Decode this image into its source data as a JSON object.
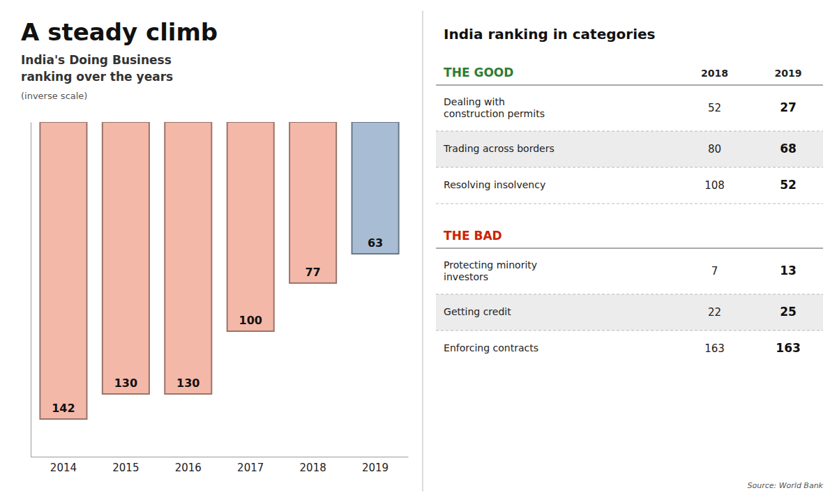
{
  "chart_data": {
    "type": "bar",
    "title": "A steady climb",
    "subtitle": [
      "India's Doing Business",
      "ranking over the years"
    ],
    "note": "(inverse scale)",
    "categories": [
      "2014",
      "2015",
      "2016",
      "2017",
      "2018",
      "2019"
    ],
    "values": [
      142,
      130,
      130,
      100,
      77,
      63
    ],
    "colors": [
      "#F4B8A8",
      "#F4B8A8",
      "#F4B8A8",
      "#F4B8A8",
      "#F4B8A8",
      "#A8BDD4"
    ],
    "ylim": [
      0,
      160
    ],
    "tick_labels": "x",
    "data_labels": true,
    "table": {
      "title": "India ranking in categories",
      "columns": [
        "2018",
        "2019"
      ],
      "sections": [
        {
          "label": "THE GOOD",
          "color": "#2E7D32",
          "rows": [
            {
              "label": "Dealing with\nconstruction permits",
              "values": [
                52,
                27
              ]
            },
            {
              "label": "Trading across borders",
              "values": [
                80,
                68
              ]
            },
            {
              "label": "Resolving insolvency",
              "values": [
                108,
                52
              ]
            }
          ]
        },
        {
          "label": "THE BAD",
          "color": "#CC2200",
          "rows": [
            {
              "label": "Protecting minority\ninvestors",
              "values": [
                7,
                13
              ]
            },
            {
              "label": "Getting credit",
              "values": [
                22,
                25
              ]
            },
            {
              "label": "Enforcing contracts",
              "values": [
                163,
                163
              ]
            }
          ]
        }
      ],
      "source": "Source: World Bank"
    }
  }
}
